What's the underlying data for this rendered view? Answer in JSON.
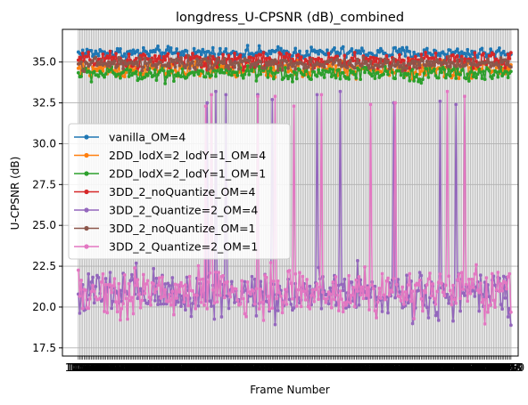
{
  "chart_data": {
    "type": "line",
    "title": "longdress_U-CPSNR (dB)_combined",
    "xlabel": "Frame Number",
    "ylabel": "U-CPSNR (dB)",
    "ylim": [
      17.0,
      37.0
    ],
    "xlim": [
      1040,
      1355
    ],
    "yticks": [
      17.5,
      20.0,
      22.5,
      25.0,
      27.5,
      30.0,
      32.5,
      35.0
    ],
    "grid": true,
    "legend_position": "center-left",
    "x_tick_labels_overlapping": true,
    "x": {
      "start": 1051,
      "end": 1350,
      "step": 1
    },
    "series": [
      {
        "name": "vanilla_OM=4",
        "color": "#1f77b4",
        "mean": 35.55,
        "spread": 0.35
      },
      {
        "name": "2DD_lodX=2_lodY=1_OM=4",
        "color": "#ff7f0e",
        "mean": 34.55,
        "spread": 0.5
      },
      {
        "name": "2DD_lodX=2_lodY=1_OM=1",
        "color": "#2ca02c",
        "mean": 34.3,
        "spread": 0.45
      },
      {
        "name": "3DD_2_noQuantize_OM=4",
        "color": "#d62728",
        "mean": 35.1,
        "spread": 0.45
      },
      {
        "name": "3DD_2_Quantize=2_OM=4",
        "color": "#9467bd",
        "mean": 20.8,
        "spread": 1.4,
        "spikes": [
          [
            1140,
            32.5
          ],
          [
            1146,
            33.2
          ],
          [
            1153,
            33.0
          ],
          [
            1175,
            33.0
          ],
          [
            1185,
            32.7
          ],
          [
            1216,
            33.0
          ],
          [
            1232,
            33.2
          ],
          [
            1269,
            32.5
          ],
          [
            1301,
            32.6
          ],
          [
            1312,
            32.4
          ]
        ]
      },
      {
        "name": "3DD_2_noQuantize_OM=1",
        "color": "#8c564b",
        "mean": 34.9,
        "spread": 0.35
      },
      {
        "name": "3DD_2_Quantize=2_OM=1",
        "color": "#e377c2",
        "mean": 20.9,
        "spread": 1.4,
        "spikes": [
          [
            1139,
            32.3
          ],
          [
            1143,
            33.0
          ],
          [
            1175,
            32.9
          ],
          [
            1187,
            32.9
          ],
          [
            1200,
            32.3
          ],
          [
            1219,
            33.0
          ],
          [
            1253,
            32.4
          ],
          [
            1270,
            32.5
          ],
          [
            1306,
            33.2
          ],
          [
            1318,
            32.9
          ]
        ]
      }
    ]
  }
}
